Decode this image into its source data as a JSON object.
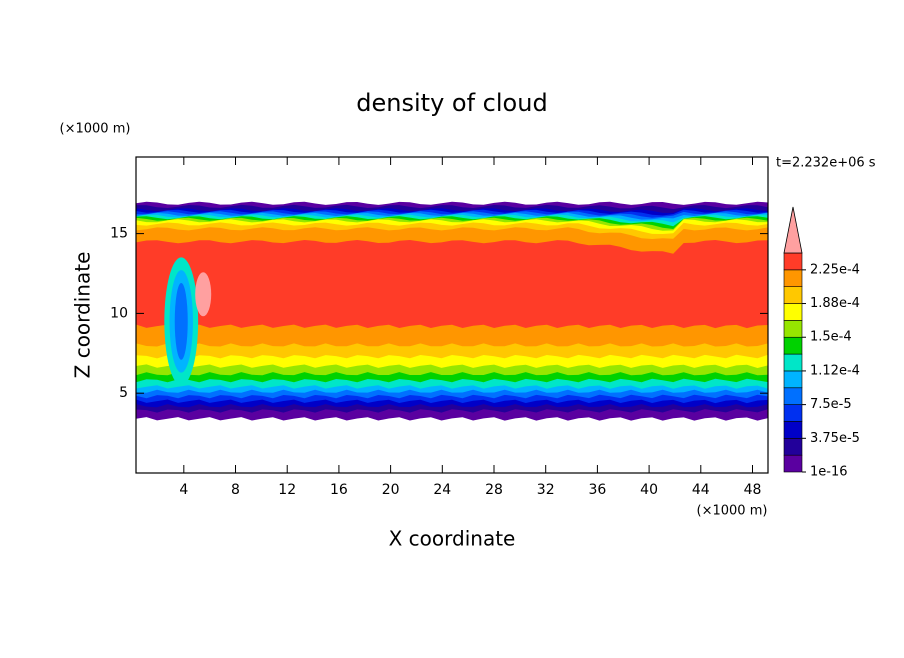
{
  "chart_data": {
    "type": "contour",
    "title": "density of cloud",
    "x_label": "X coordinate",
    "y_label": "Z coordinate",
    "x_unit": "(×1000 m)",
    "y_unit": "(×1000 m)",
    "time_label": "t=2.232e+06 s",
    "xlim": [
      0.3,
      49.2
    ],
    "ylim": [
      0,
      19.8
    ],
    "xticks": [
      4,
      8,
      12,
      16,
      20,
      24,
      28,
      32,
      36,
      40,
      44,
      48
    ],
    "yticks": [
      5,
      10,
      15
    ],
    "colorbar": {
      "colors": [
        "#5a00a0",
        "#22009a",
        "#0000c8",
        "#0030f0",
        "#0070ff",
        "#00b4ff",
        "#00e6c8",
        "#00d200",
        "#96e600",
        "#ffff00",
        "#ffc800",
        "#ff9600",
        "#ff3c28"
      ],
      "extend_color": "#ffa0a0",
      "ticks": [
        {
          "value": 1e-16,
          "label": "1e-16"
        },
        {
          "value": 3.75e-05,
          "label": "3.75e-5"
        },
        {
          "value": 7.5e-05,
          "label": "7.5e-5"
        },
        {
          "value": 0.0001125,
          "label": "1.12e-4"
        },
        {
          "value": 0.00015,
          "label": "1.5e-4"
        },
        {
          "value": 0.0001875,
          "label": "1.88e-4"
        },
        {
          "value": 0.000225,
          "label": "2.25e-4"
        }
      ],
      "lim": [
        0,
        0.00024375
      ]
    }
  }
}
